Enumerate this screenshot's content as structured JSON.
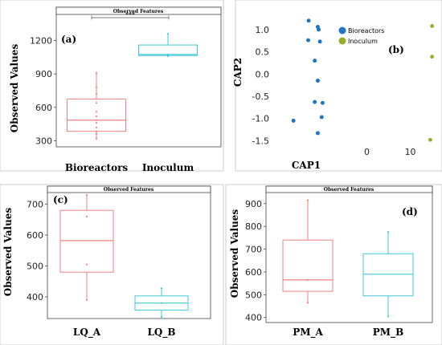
{
  "colors": {
    "group1": "#f08080",
    "group2": "#40c8d8",
    "bioreactors": "#1f77c4",
    "inoculum": "#9aab2a"
  },
  "chart_data": [
    {
      "panel": "(a)",
      "type": "box",
      "title": "Observed Features",
      "ylabel": "Observed Values",
      "ylim": [
        260,
        1420
      ],
      "yticks": [
        300,
        600,
        900,
        1200
      ],
      "significance": "***",
      "categories": [
        "Bioreactors",
        "Inoculum"
      ],
      "boxes": [
        {
          "q1": 385,
          "median": 485,
          "q3": 675,
          "whisker_low": 320,
          "whisker_high": 910,
          "points": [
            320,
            360,
            385,
            420,
            460,
            485,
            520,
            560,
            640,
            720,
            780,
            910
          ]
        },
        {
          "q1": 1065,
          "median": 1075,
          "q3": 1160,
          "whisker_low": 1060,
          "whisker_high": 1260,
          "points": [
            1060,
            1075,
            1260
          ]
        }
      ]
    },
    {
      "panel": "(b)",
      "type": "scatter",
      "xlabel": "CAP1",
      "ylabel": "CAP2",
      "xlim": [
        -21,
        16
      ],
      "ylim": [
        -1.62,
        1.25
      ],
      "xticks": [
        0,
        10
      ],
      "yticks": [
        1.0,
        0.5,
        0.0,
        -0.5,
        -1.0,
        -1.5
      ],
      "series": [
        {
          "name": "Bioreactors",
          "points": [
            [
              -13.4,
              1.2
            ],
            [
              -11.3,
              1.06
            ],
            [
              -11.1,
              1.0
            ],
            [
              -13.5,
              0.76
            ],
            [
              -10.8,
              0.73
            ],
            [
              -12.0,
              0.3
            ],
            [
              -11.3,
              -0.15
            ],
            [
              -12.0,
              -0.63
            ],
            [
              -10.2,
              -0.65
            ],
            [
              -10.4,
              -0.97
            ],
            [
              -16.9,
              -1.05
            ],
            [
              -11.3,
              -1.33
            ]
          ]
        },
        {
          "name": "Inoculum",
          "points": [
            [
              15.0,
              1.08
            ],
            [
              15.0,
              0.39
            ],
            [
              14.6,
              -1.48
            ]
          ]
        }
      ]
    },
    {
      "panel": "(c)",
      "type": "box",
      "title": "Observed Features",
      "ylabel": "Observed Values",
      "ylim": [
        335,
        735
      ],
      "yticks": [
        400,
        500,
        600,
        700
      ],
      "categories": [
        "LQ_A",
        "LQ_B"
      ],
      "boxes": [
        {
          "q1": 480,
          "median": 582,
          "q3": 680,
          "whisker_low": 390,
          "whisker_high": 730,
          "points": [
            390,
            505,
            660,
            730
          ]
        },
        {
          "q1": 357,
          "median": 380,
          "q3": 403,
          "whisker_low": 335,
          "whisker_high": 428,
          "points": [
            335,
            380,
            428
          ]
        }
      ]
    },
    {
      "panel": "(d)",
      "type": "box",
      "title": "Observed Features",
      "ylabel": "Observed Values",
      "ylim": [
        385,
        945
      ],
      "yticks": [
        400,
        500,
        600,
        700,
        800,
        900
      ],
      "categories": [
        "PM_A",
        "PM_B"
      ],
      "boxes": [
        {
          "q1": 515,
          "median": 565,
          "q3": 740,
          "whisker_low": 465,
          "whisker_high": 915,
          "points": [
            465,
            565,
            915
          ]
        },
        {
          "q1": 495,
          "median": 590,
          "q3": 680,
          "whisker_low": 405,
          "whisker_high": 775,
          "points": [
            405,
            775
          ]
        }
      ]
    }
  ]
}
